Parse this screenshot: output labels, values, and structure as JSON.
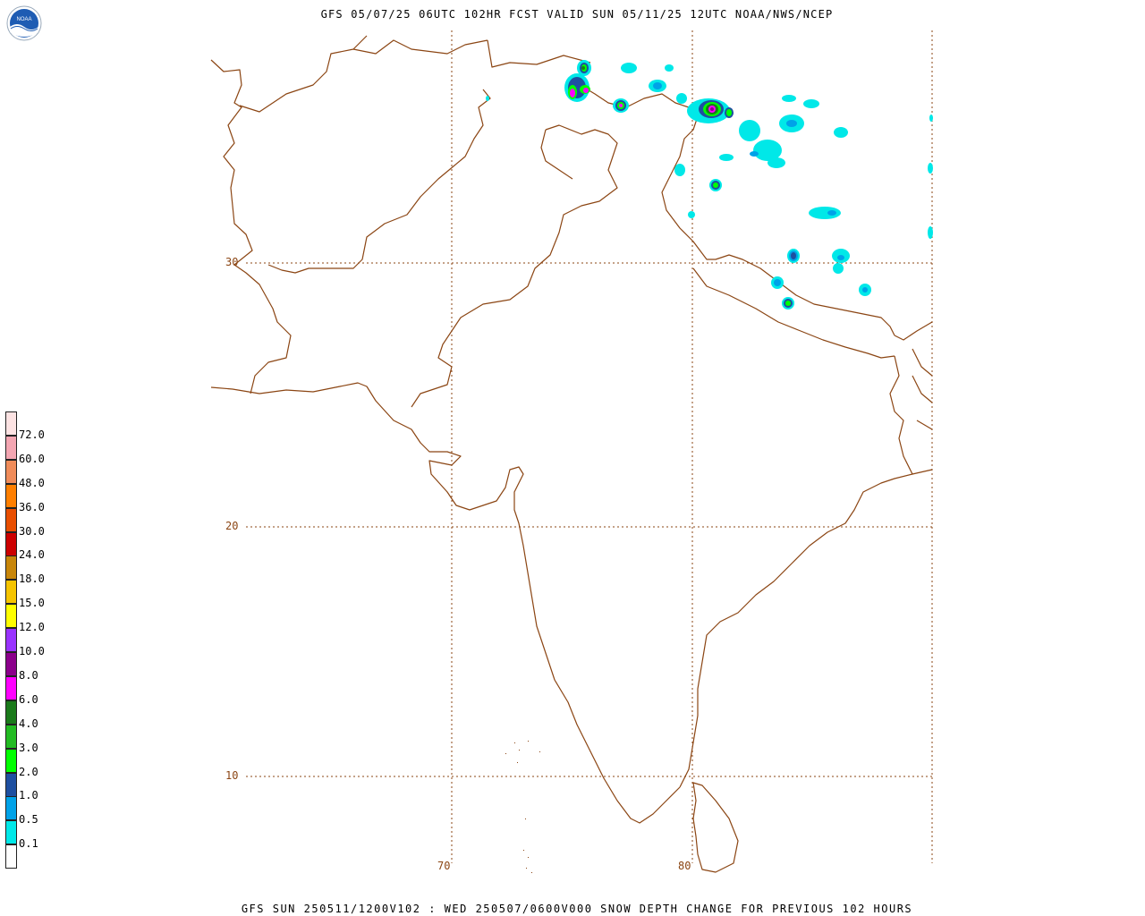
{
  "header": {
    "title": "GFS 05/07/25 06UTC 102HR FCST VALID SUN 05/11/25 12UTC NOAA/NWS/NCEP"
  },
  "footer": {
    "text": "GFS SUN 250511/1200V102 : WED 250507/0600V000 SNOW DEPTH CHANGE FOR PREVIOUS 102 HOURS"
  },
  "logo": {
    "text": "NOAA",
    "icon": "noaa-logo-icon"
  },
  "grid": {
    "lat_labels": [
      "30",
      "20",
      "10"
    ],
    "lon_labels": [
      "70",
      "80"
    ]
  },
  "legend": {
    "values": [
      "72.0",
      "60.0",
      "48.0",
      "36.0",
      "30.0",
      "24.0",
      "18.0",
      "15.0",
      "12.0",
      "10.0",
      "8.0",
      "6.0",
      "4.0",
      "3.0",
      "2.0",
      "1.0",
      "0.5",
      "0.1"
    ],
    "colors": [
      "#fde3e3",
      "#f4a6b2",
      "#f08c5a",
      "#ff7f00",
      "#e84e00",
      "#cc0000",
      "#c8860a",
      "#f5c400",
      "#ffff00",
      "#9933ff",
      "#8b008b",
      "#ff00ff",
      "#1a7a1a",
      "#22bb22",
      "#00ff00",
      "#1e4fa0",
      "#00a2e8",
      "#00e8e8",
      "#ffffff"
    ]
  },
  "colors": {
    "border": "#8b4513",
    "gridline": "#8b4513"
  }
}
